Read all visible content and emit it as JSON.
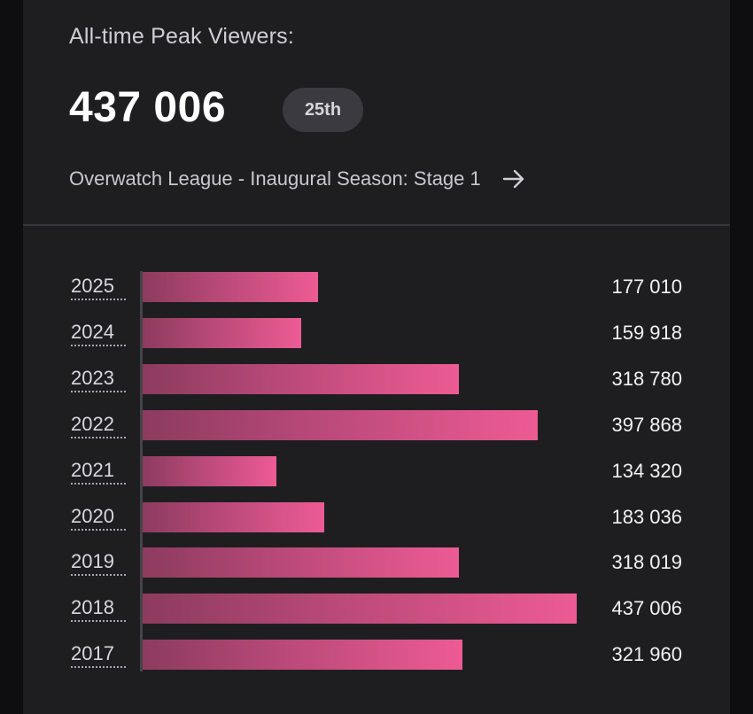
{
  "header": {
    "peak_label": "All-time Peak Viewers:",
    "peak_value": "437 006",
    "rank": "25th",
    "event_name": "Overwatch League - Inaugural Season: Stage 1",
    "arrow_icon": "arrow-right-icon"
  },
  "colors": {
    "background": "#1e1e21",
    "bar_start": "#8c3b5e",
    "bar_end": "#ed5b94"
  },
  "chart_data": {
    "type": "bar",
    "orientation": "horizontal",
    "categories": [
      "2025",
      "2024",
      "2023",
      "2022",
      "2021",
      "2020",
      "2019",
      "2018",
      "2017"
    ],
    "values": [
      177010,
      159918,
      318780,
      397868,
      134320,
      183036,
      318019,
      437006,
      321960
    ],
    "value_labels": [
      "177 010",
      "159 918",
      "318 780",
      "397 868",
      "134 320",
      "183 036",
      "318 019",
      "437 006",
      "321 960"
    ],
    "xlim": [
      0,
      437006
    ],
    "grid": false,
    "legend": "none"
  }
}
